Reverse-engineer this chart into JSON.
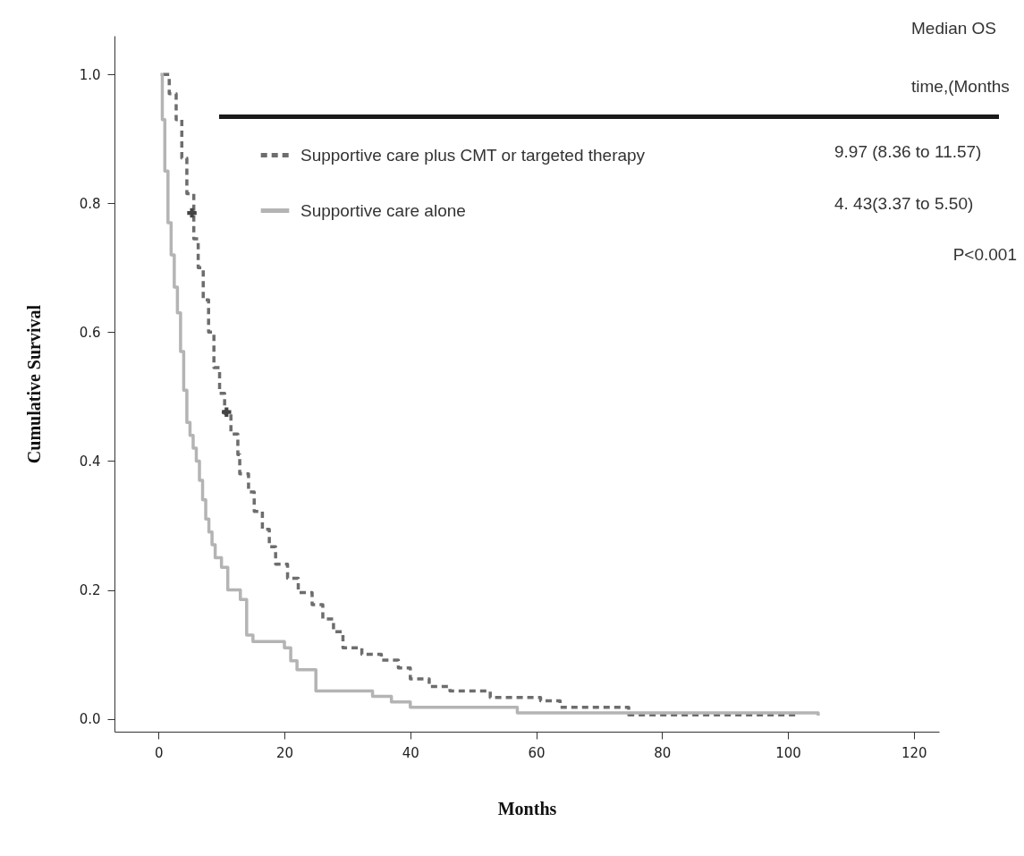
{
  "chart_data": {
    "type": "step",
    "xlabel": "Months",
    "ylabel": "Cumulative Survival",
    "xlim": [
      -7,
      124
    ],
    "ylim": [
      -0.02,
      1.06
    ],
    "xticks": [
      0,
      20,
      40,
      60,
      80,
      100,
      120
    ],
    "yticks": [
      {
        "value": 0,
        "label": "0.0"
      },
      {
        "value": 0.2,
        "label": "0.2"
      },
      {
        "value": 0.4,
        "label": "0.4"
      },
      {
        "value": 0.6,
        "label": "0.6"
      },
      {
        "value": 0.8,
        "label": "0.8"
      },
      {
        "value": 1,
        "label": "1.0"
      }
    ],
    "grid": false,
    "legend": "top",
    "annotations": [
      "Median OS",
      "time,(Months",
      "9.97 (8.36 to 11.57)",
      "4. 43(3.37 to 5.50)",
      "P<0.001"
    ],
    "series": [
      {
        "name": "Supportive care plus CMT or targeted therapy",
        "color": "#6d6d6d",
        "line_style": "dashed",
        "x": [
          0.7,
          1.7,
          2.8,
          3.7,
          4.5,
          5.6,
          6.3,
          7.1,
          7.95,
          8.8,
          9.7,
          10.5,
          11.5,
          12.6,
          12.9,
          14.3,
          15.2,
          16.5,
          17.6,
          18.6,
          20.5,
          22.2,
          24.4,
          26.1,
          27.8,
          29.3,
          32.3,
          35.4,
          38.1,
          40,
          43,
          46.3,
          52.7,
          60.7,
          63.8,
          74.7,
          101.6
        ],
        "values": [
          1.0,
          0.97,
          0.93,
          0.87,
          0.815,
          0.745,
          0.7,
          0.65,
          0.6,
          0.545,
          0.505,
          0.474,
          0.442,
          0.41,
          0.38,
          0.352,
          0.322,
          0.294,
          0.267,
          0.24,
          0.218,
          0.196,
          0.177,
          0.155,
          0.135,
          0.11,
          0.1,
          0.091,
          0.079,
          0.062,
          0.05,
          0.043,
          0.033,
          0.028,
          0.018,
          0.006,
          0.004
        ]
      },
      {
        "name": "Supportive care alone",
        "color": "#b4b4b4",
        "line_style": "solid",
        "x": [
          0.3,
          0.6,
          1,
          1.5,
          2,
          2.5,
          3,
          3.5,
          4,
          4.5,
          5,
          5.5,
          6,
          6.5,
          7,
          7.5,
          8,
          8.5,
          9,
          10,
          11,
          13,
          14,
          15,
          20,
          21,
          22,
          25,
          34,
          37,
          40,
          57,
          104.8
        ],
        "values": [
          1.0,
          0.93,
          0.85,
          0.77,
          0.72,
          0.67,
          0.63,
          0.57,
          0.51,
          0.46,
          0.44,
          0.42,
          0.4,
          0.37,
          0.34,
          0.31,
          0.29,
          0.27,
          0.25,
          0.235,
          0.2,
          0.185,
          0.13,
          0.12,
          0.11,
          0.09,
          0.076,
          0.043,
          0.035,
          0.026,
          0.018,
          0.009,
          0.005
        ]
      },
      {
        "type": "scatter",
        "marker": "cross",
        "color": "#444444",
        "x": [
          5.3,
          10.8
        ],
        "values": [
          0.785,
          0.476
        ]
      }
    ]
  }
}
